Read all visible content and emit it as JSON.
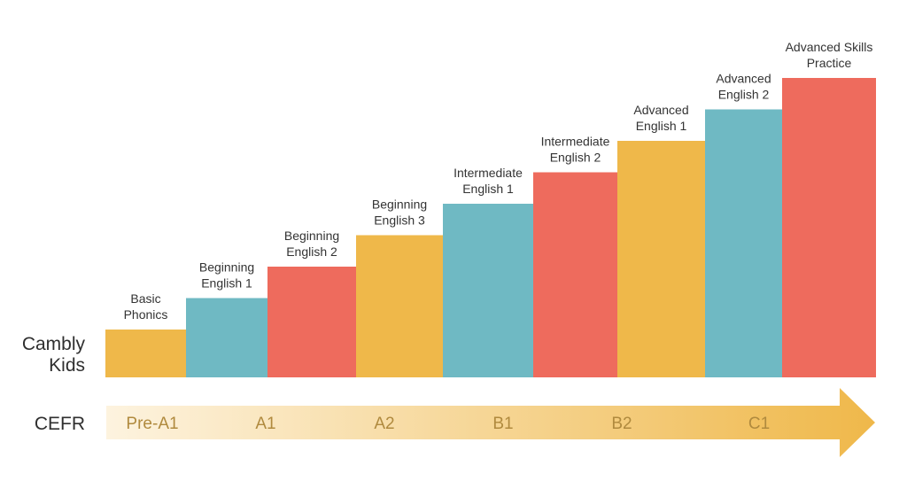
{
  "row_labels": {
    "cambly_kids": [
      "Cambly",
      "Kids"
    ],
    "cefr": "CEFR"
  },
  "colors": {
    "yellow": "#EFB84A",
    "teal": "#6FB9C3",
    "coral": "#EE6B5D",
    "arrow_start": "#FDF3DF",
    "arrow_end": "#EFB84A",
    "cefr_text": "#B08A3E"
  },
  "chart_data": {
    "type": "bar",
    "title": "",
    "xlabel": "",
    "ylabel": "",
    "grid": false,
    "categories": [
      "Basic Phonics",
      "Beginning English 1",
      "Beginning English 2",
      "Beginning English 3",
      "Intermediate English 1",
      "Intermediate English 2",
      "Advanced English 1",
      "Advanced English 2",
      "Advanced Skills Practice"
    ],
    "label_lines": [
      [
        "Basic",
        "Phonics"
      ],
      [
        "Beginning",
        "English 1"
      ],
      [
        "Beginning",
        "English 2"
      ],
      [
        "Beginning",
        "English 3"
      ],
      [
        "Intermediate",
        "English 1"
      ],
      [
        "Intermediate",
        "English 2"
      ],
      [
        "Advanced",
        "English 1"
      ],
      [
        "Advanced",
        "English 2"
      ],
      [
        "Advanced Skills",
        "Practice"
      ]
    ],
    "values": [
      1,
      2,
      3,
      4,
      5,
      6,
      7,
      8,
      9
    ],
    "bar_colors": [
      "yellow",
      "teal",
      "coral",
      "yellow",
      "teal",
      "coral",
      "yellow",
      "teal",
      "coral"
    ],
    "cefr_levels": [
      "Pre-A1",
      "A1",
      "A2",
      "B1",
      "B2",
      "C1"
    ]
  }
}
